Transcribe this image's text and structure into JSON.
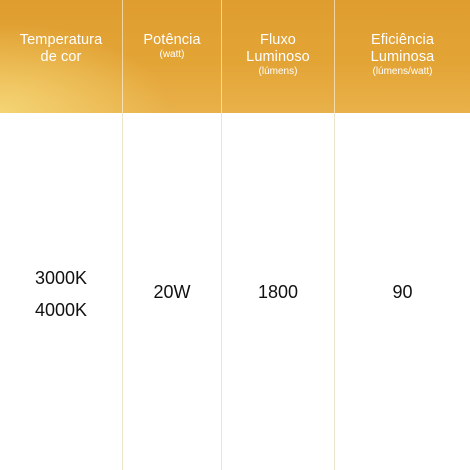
{
  "headers": [
    {
      "title_line1": "Temperatura",
      "title_line2": "de cor",
      "subtitle": ""
    },
    {
      "title_line1": "Potência",
      "title_line2": "",
      "subtitle": "(watt)"
    },
    {
      "title_line1": "Fluxo",
      "title_line2": "Luminoso",
      "subtitle": "(lúmens)"
    },
    {
      "title_line1": "Eficiência",
      "title_line2": "Luminosa",
      "subtitle": "(lúmens/watt)"
    }
  ],
  "row": {
    "color_temperatures": [
      "3000K",
      "4000K"
    ],
    "power": "20W",
    "flux": "1800",
    "efficiency": "90"
  },
  "colors": {
    "header_top": "#df9d2f",
    "header_bottom_left": "#f5d676",
    "header_text": "#ffffff",
    "divider": "#ece6cc"
  }
}
